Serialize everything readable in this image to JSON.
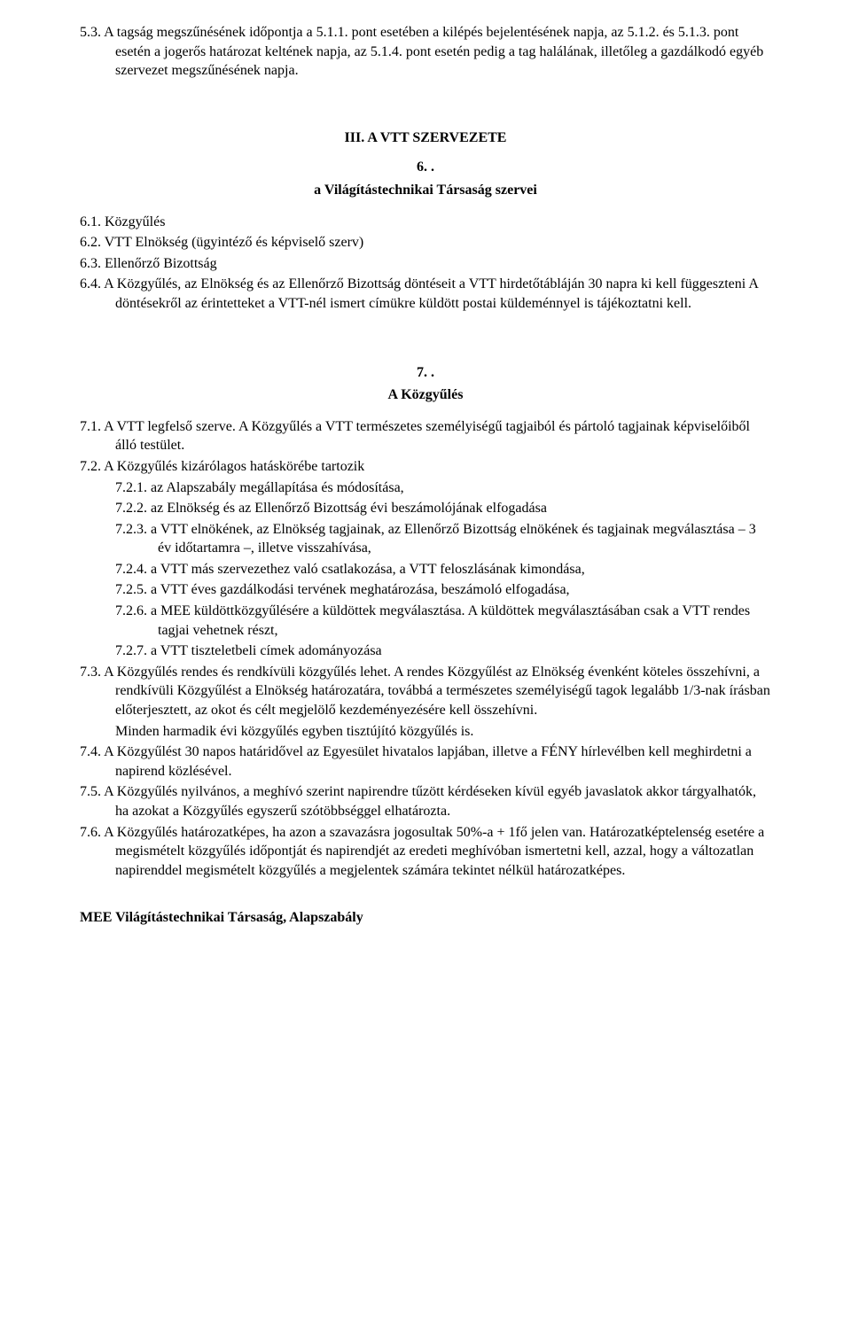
{
  "p53": "5.3.  A tagság megszűnésének időpontja a 5.1.1. pont esetében a kilépés bejelentésének napja, az 5.1.2. és 5.1.3. pont esetén a jogerős határozat keltének napja, az 5.1.4. pont esetén pedig a tag halálának, illetőleg a gazdálkodó egyéb szervezet megszűnésének napja.",
  "h3": "III. A VTT SZERVEZETE",
  "s6num": "6. .",
  "s6title": "a Világítástechnikai Társaság szervei",
  "p61": "6.1.  Közgyűlés",
  "p62": "6.2.  VTT Elnökség (ügyintéző és képviselő szerv)",
  "p63": "6.3.  Ellenőrző Bizottság",
  "p64": "6.4.  A Közgyűlés, az Elnökség és az Ellenőrző Bizottság döntéseit a VTT hirdetőtábláján 30 napra ki kell függeszteni A döntésekről az érintetteket a VTT-nél ismert címükre küldött postai küldeménnyel is tájékoztatni kell.",
  "s7num": "7. .",
  "s7title": "A Közgyűlés",
  "p71": "7.1.  A VTT legfelső szerve. A Közgyűlés a VTT természetes személyiségű tagjaiból és pártoló tagjainak képviselőiből álló testület.",
  "p72": "7.2.  A Közgyűlés kizárólagos hatáskörébe tartozik",
  "p721": "7.2.1.  az Alapszabály megállapítása és módosítása,",
  "p722": "7.2.2.  az Elnökség és az Ellenőrző Bizottság évi beszámolójának elfogadása",
  "p723": "7.2.3.  a VTT elnökének, az Elnökség tagjainak, az Ellenőrző Bizottság elnökének és tagjainak megválasztása – 3 év időtartamra –, illetve visszahívása,",
  "p724": "7.2.4.  a VTT más szervezethez való csatlakozása, a VTT feloszlásának kimondása,",
  "p725": "7.2.5.  a VTT éves gazdálkodási tervének meghatározása, beszámoló elfogadása,",
  "p726": "7.2.6.  a MEE küldöttközgyűlésére a küldöttek megválasztása. A küldöttek megválasztásában csak a VTT rendes tagjai vehetnek részt,",
  "p727": "7.2.7.  a VTT tiszteletbeli címek adományozása",
  "p73a": "7.3.  A Közgyűlés rendes és rendkívüli közgyűlés lehet. A rendes Közgyűlést az Elnökség évenként köteles összehívni, a rendkívüli Közgyűlést a Elnökség határozatára, továbbá a természetes személyiségű tagok legalább 1/3-nak írásban előterjesztett, az okot és célt megjelölő kezdeményezésére kell összehívni.",
  "p73b": "Minden harmadik évi közgyűlés egyben tisztújító közgyűlés is.",
  "p74": "7.4.  A Közgyűlést 30 napos határidővel az Egyesület hivatalos lapjában, illetve a FÉNY hírlevélben kell meghirdetni a napirend közlésével.",
  "p75": "7.5.  A Közgyűlés nyilvános, a meghívó szerint napirendre tűzött kérdéseken kívül egyéb javaslatok akkor tárgyalhatók, ha azokat a Közgyűlés egyszerű szótöbbséggel elhatározta.",
  "p76": "7.6.  A Közgyűlés határozatképes, ha azon a szavazásra jogosultak 50%-a + 1fő jelen van. Határozatképtelenség esetére a megismételt közgyűlés időpontját és napirendjét az eredeti meghívóban ismertetni kell, azzal, hogy a változatlan napirenddel megismételt közgyűlés a megjelentek számára tekintet nélkül határozatképes.",
  "footer": "MEE Világítástechnikai Társaság, Alapszabály"
}
